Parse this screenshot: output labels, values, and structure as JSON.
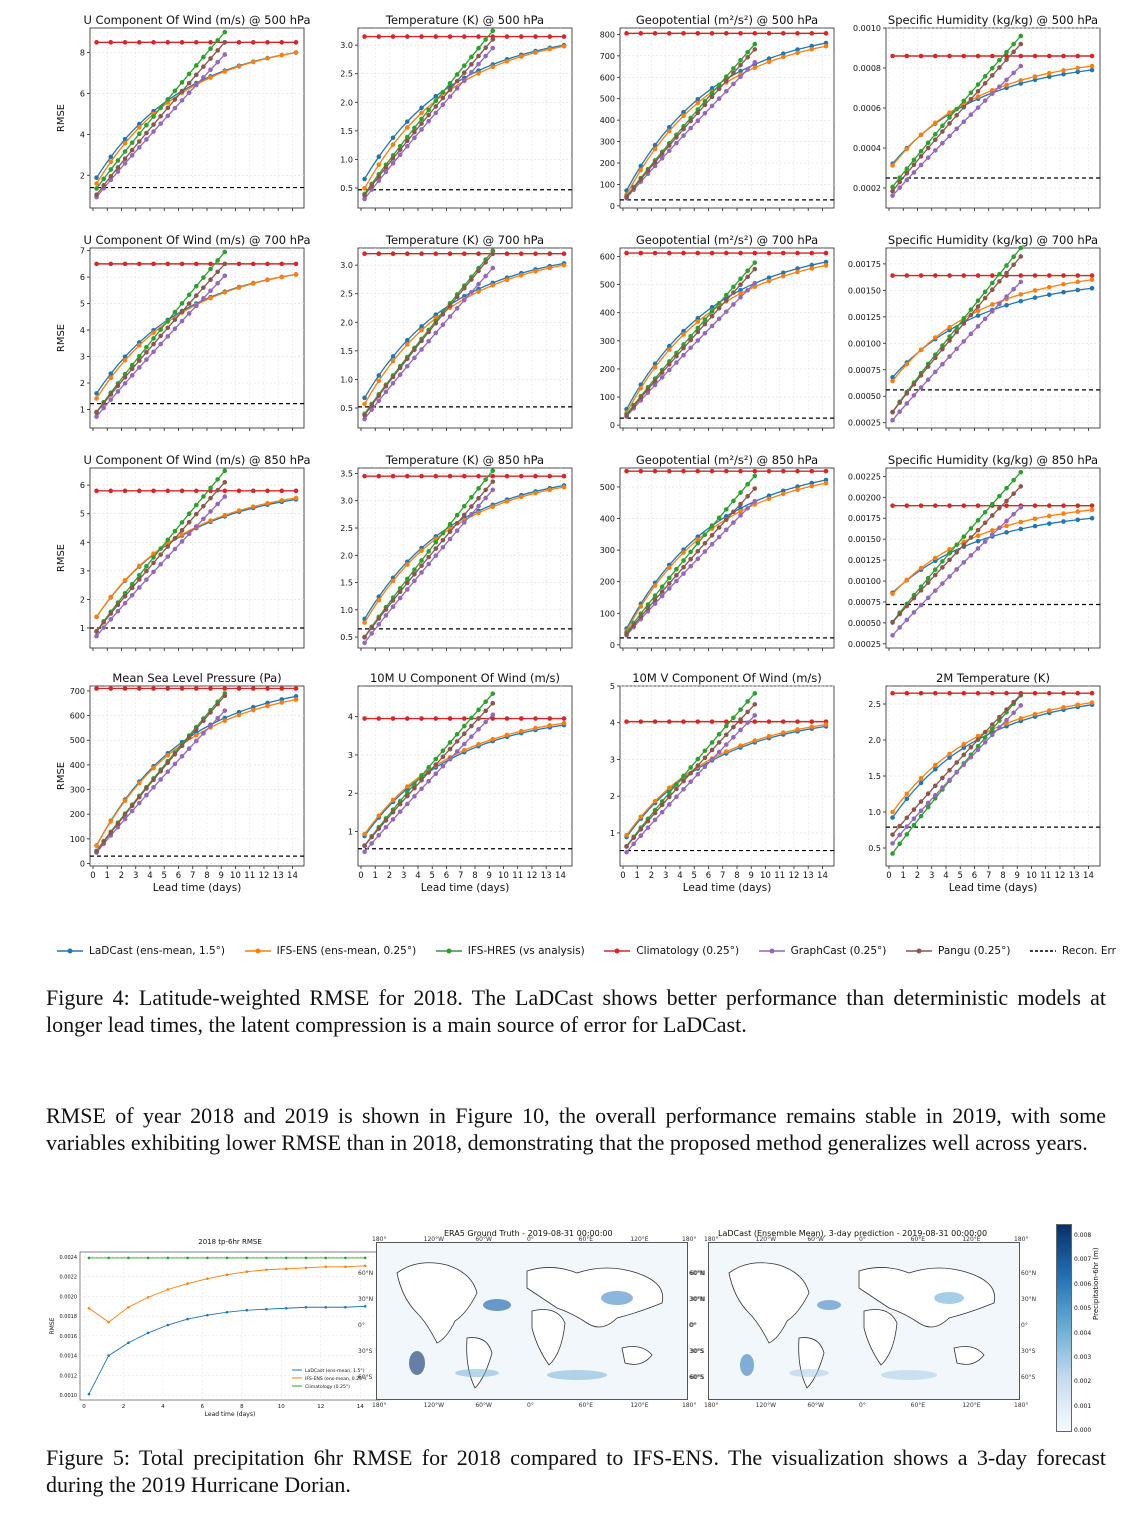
{
  "figure4": {
    "colors": {
      "LaDCast": "#1f77b4",
      "IFS-ENS": "#ff7f0e",
      "IFS-HRES": "#2ca02c",
      "Climatology": "#d62728",
      "GraphCast": "#9467bd",
      "Pangu": "#8c564b",
      "Recon": "#000000"
    },
    "ylabel": "RMSE",
    "xlabel": "Lead time (days)",
    "xticks": [
      "0",
      "1",
      "2",
      "3",
      "4",
      "5",
      "6",
      "7",
      "8",
      "9",
      "10",
      "11",
      "12",
      "13",
      "14"
    ],
    "legend": [
      {
        "key": "LaDCast",
        "label": "LaDCast (ens-mean, 1.5°)",
        "style": "line"
      },
      {
        "key": "IFS-ENS",
        "label": "IFS-ENS (ens-mean, 0.25°)",
        "style": "line"
      },
      {
        "key": "IFS-HRES",
        "label": "IFS-HRES (vs analysis)",
        "style": "line"
      },
      {
        "key": "Climatology",
        "label": "Climatology (0.25°)",
        "style": "line"
      },
      {
        "key": "GraphCast",
        "label": "GraphCast (0.25°)",
        "style": "line"
      },
      {
        "key": "Pangu",
        "label": "Pangu (0.25°)",
        "style": "line"
      },
      {
        "key": "Recon",
        "label": "Recon. Err",
        "style": "dashed"
      }
    ]
  },
  "chart_data": [
    {
      "type": "line",
      "title": "U Component Of Wind (m/s) @ 500 hPa",
      "ylim": [
        0.4,
        9.2
      ],
      "yticks": [
        "2",
        "4",
        "6",
        "8"
      ],
      "ytick_vals": [
        2,
        4,
        6,
        8
      ],
      "start": {
        "LaDCast": 1.6,
        "IFS-ENS": 1.3,
        "IFS-HRES": 1.1,
        "GraphCast": 0.7,
        "Pangu": 0.8
      },
      "end": {
        "LaDCast": 8.0,
        "IFS-ENS": 8.0,
        "IFS-HRES": 9.0,
        "GraphCast": 7.9,
        "Pangu": 8.5
      },
      "clim": 8.5,
      "recon": 1.4
    },
    {
      "type": "line",
      "title": "Temperature (K) @ 500 hPa",
      "ylim": [
        0.15,
        3.3
      ],
      "yticks": [
        "0.5",
        "1.0",
        "1.5",
        "2.0",
        "2.5",
        "3.0"
      ],
      "ytick_vals": [
        0.5,
        1.0,
        1.5,
        2.0,
        2.5,
        3.0
      ],
      "start": {
        "LaDCast": 0.55,
        "IFS-ENS": 0.38,
        "IFS-HRES": 0.3,
        "GraphCast": 0.22,
        "Pangu": 0.28
      },
      "end": {
        "LaDCast": 3.0,
        "IFS-ENS": 2.98,
        "IFS-HRES": 3.25,
        "GraphCast": 2.95,
        "Pangu": 3.1
      },
      "clim": 3.15,
      "recon": 0.47
    },
    {
      "type": "line",
      "title": "Geopotential (m²/s²) @ 500 hPa",
      "ylim": [
        -10,
        830
      ],
      "yticks": [
        "0",
        "100",
        "200",
        "300",
        "400",
        "500",
        "600",
        "700",
        "800"
      ],
      "ytick_vals": [
        0,
        100,
        200,
        300,
        400,
        500,
        600,
        700,
        800
      ],
      "start": {
        "LaDCast": 40,
        "IFS-ENS": 20,
        "IFS-HRES": 20,
        "GraphCast": 15,
        "Pangu": 18
      },
      "end": {
        "LaDCast": 760,
        "IFS-ENS": 745,
        "IFS-HRES": 755,
        "GraphCast": 670,
        "Pangu": 730
      },
      "clim": 805,
      "recon": 28
    },
    {
      "type": "line",
      "title": "Specific Humidity (kg/kg) @ 500 hPa",
      "ylim": [
        0.0001,
        0.001
      ],
      "yticks": [
        "0.0002",
        "0.0004",
        "0.0006",
        "0.0008",
        "0.0010"
      ],
      "ytick_vals": [
        0.0002,
        0.0004,
        0.0006,
        0.0008,
        0.001
      ],
      "start": {
        "LaDCast": 0.0003,
        "IFS-ENS": 0.00029,
        "IFS-HRES": 0.00018,
        "GraphCast": 0.00014,
        "Pangu": 0.00016
      },
      "end": {
        "LaDCast": 0.00079,
        "IFS-ENS": 0.00081,
        "IFS-HRES": 0.00096,
        "GraphCast": 0.00081,
        "Pangu": 0.00092
      },
      "clim": 0.00086,
      "recon": 0.00025
    },
    {
      "type": "line",
      "title": "U Component Of Wind (m/s) @ 700 hPa",
      "ylim": [
        0.3,
        7.1
      ],
      "yticks": [
        "1",
        "2",
        "3",
        "4",
        "5",
        "6",
        "7"
      ],
      "ytick_vals": [
        1,
        2,
        3,
        4,
        5,
        6,
        7
      ],
      "start": {
        "LaDCast": 1.4,
        "IFS-ENS": 1.2,
        "IFS-HRES": 0.7,
        "GraphCast": 0.55,
        "Pangu": 0.7
      },
      "end": {
        "LaDCast": 6.1,
        "IFS-ENS": 6.1,
        "IFS-HRES": 6.95,
        "GraphCast": 6.05,
        "Pangu": 6.5
      },
      "clim": 6.5,
      "recon": 1.22
    },
    {
      "type": "line",
      "title": "Temperature (K) @ 700 hPa",
      "ylim": [
        0.15,
        3.3
      ],
      "yticks": [
        "0.5",
        "1.0",
        "1.5",
        "2.0",
        "2.5",
        "3.0"
      ],
      "ytick_vals": [
        0.5,
        1.0,
        1.5,
        2.0,
        2.5,
        3.0
      ],
      "start": {
        "LaDCast": 0.57,
        "IFS-ENS": 0.46,
        "IFS-HRES": 0.3,
        "GraphCast": 0.22,
        "Pangu": 0.28
      },
      "end": {
        "LaDCast": 3.03,
        "IFS-ENS": 3.0,
        "IFS-HRES": 3.25,
        "GraphCast": 2.95,
        "Pangu": 3.2
      },
      "clim": 3.2,
      "recon": 0.52
    },
    {
      "type": "line",
      "title": "Geopotential (m²/s²) @ 700 hPa",
      "ylim": [
        -10,
        630
      ],
      "yticks": [
        "0",
        "100",
        "200",
        "300",
        "400",
        "500",
        "600"
      ],
      "ytick_vals": [
        0,
        100,
        200,
        300,
        400,
        500,
        600
      ],
      "start": {
        "LaDCast": 33,
        "IFS-ENS": 20,
        "IFS-HRES": 20,
        "GraphCast": 15,
        "Pangu": 17
      },
      "end": {
        "LaDCast": 580,
        "IFS-ENS": 568,
        "IFS-HRES": 578,
        "GraphCast": 505,
        "Pangu": 555
      },
      "clim": 612,
      "recon": 25
    },
    {
      "type": "line",
      "title": "Specific Humidity (kg/kg) @ 700 hPa",
      "ylim": [
        0.0002,
        0.0019
      ],
      "yticks": [
        "0.00025",
        "0.00050",
        "0.00075",
        "0.00100",
        "0.00125",
        "0.00150",
        "0.00175"
      ],
      "ytick_vals": [
        0.00025,
        0.0005,
        0.00075,
        0.001,
        0.00125,
        0.0015,
        0.00175
      ],
      "start": {
        "LaDCast": 0.00064,
        "IFS-ENS": 0.0006,
        "IFS-HRES": 0.0003,
        "GraphCast": 0.00023,
        "Pangu": 0.0003
      },
      "end": {
        "LaDCast": 0.00152,
        "IFS-ENS": 0.0016,
        "IFS-HRES": 0.0019,
        "GraphCast": 0.00158,
        "Pangu": 0.00182
      },
      "clim": 0.00164,
      "recon": 0.00056
    },
    {
      "type": "line",
      "title": "U Component Of Wind (m/s) @ 850 hPa",
      "ylim": [
        0.3,
        6.6
      ],
      "yticks": [
        "1",
        "2",
        "3",
        "4",
        "5",
        "6"
      ],
      "ytick_vals": [
        1,
        2,
        3,
        4,
        5,
        6
      ],
      "start": {
        "LaDCast": 1.2,
        "IFS-ENS": 1.2,
        "IFS-HRES": 0.7,
        "GraphCast": 0.55,
        "Pangu": 0.7
      },
      "end": {
        "LaDCast": 5.5,
        "IFS-ENS": 5.55,
        "IFS-HRES": 6.5,
        "GraphCast": 5.6,
        "Pangu": 6.1
      },
      "clim": 5.8,
      "recon": 1.0
    },
    {
      "type": "line",
      "title": "Temperature (K) @ 850 hPa",
      "ylim": [
        0.3,
        3.6
      ],
      "yticks": [
        "0.5",
        "1.0",
        "1.5",
        "2.0",
        "2.5",
        "3.0",
        "3.5"
      ],
      "ytick_vals": [
        0.5,
        1.0,
        1.5,
        2.0,
        2.5,
        3.0,
        3.5
      ],
      "start": {
        "LaDCast": 0.72,
        "IFS-ENS": 0.65,
        "IFS-HRES": 0.4,
        "GraphCast": 0.3,
        "Pangu": 0.4
      },
      "end": {
        "LaDCast": 3.28,
        "IFS-ENS": 3.25,
        "IFS-HRES": 3.55,
        "GraphCast": 3.2,
        "Pangu": 3.35
      },
      "clim": 3.45,
      "recon": 0.65
    },
    {
      "type": "line",
      "title": "Geopotential (m²/s²) @ 850 hPa",
      "ylim": [
        -10,
        560
      ],
      "yticks": [
        "0",
        "100",
        "200",
        "300",
        "400",
        "500"
      ],
      "ytick_vals": [
        0,
        100,
        200,
        300,
        400,
        500
      ],
      "start": {
        "LaDCast": 30,
        "IFS-ENS": 22,
        "IFS-HRES": 22,
        "GraphCast": 16,
        "Pangu": 18
      },
      "end": {
        "LaDCast": 522,
        "IFS-ENS": 512,
        "IFS-HRES": 535,
        "GraphCast": 455,
        "Pangu": 495
      },
      "clim": 550,
      "recon": 22
    },
    {
      "type": "line",
      "title": "Specific Humidity (kg/kg) @ 850 hPa",
      "ylim": [
        0.0002,
        0.00235
      ],
      "yticks": [
        "0.00025",
        "0.00050",
        "0.00075",
        "0.00100",
        "0.00125",
        "0.00150",
        "0.00175",
        "0.00200",
        "0.00225"
      ],
      "ytick_vals": [
        0.00025,
        0.0005,
        0.00075,
        0.001,
        0.00125,
        0.0015,
        0.00175,
        0.002,
        0.00225
      ],
      "start": {
        "LaDCast": 0.00082,
        "IFS-ENS": 0.0008,
        "IFS-HRES": 0.00045,
        "GraphCast": 0.0003,
        "Pangu": 0.00045
      },
      "end": {
        "LaDCast": 0.00175,
        "IFS-ENS": 0.00185,
        "IFS-HRES": 0.0023,
        "GraphCast": 0.00188,
        "Pangu": 0.00213
      },
      "clim": 0.0019,
      "recon": 0.00072
    },
    {
      "type": "line",
      "title": "Mean Sea Level Pressure (Pa)",
      "ylim": [
        -10,
        720
      ],
      "yticks": [
        "0",
        "100",
        "200",
        "300",
        "400",
        "500",
        "600",
        "700"
      ],
      "ytick_vals": [
        0,
        100,
        200,
        300,
        400,
        500,
        600,
        700
      ],
      "start": {
        "LaDCast": 45,
        "IFS-ENS": 45,
        "IFS-HRES": 30,
        "GraphCast": 25,
        "Pangu": 28
      },
      "end": {
        "LaDCast": 678,
        "IFS-ENS": 665,
        "IFS-HRES": 690,
        "GraphCast": 620,
        "Pangu": 680
      },
      "clim": 710,
      "recon": 30
    },
    {
      "type": "line",
      "title": "10M U Component Of Wind (m/s)",
      "ylim": [
        0.1,
        4.8
      ],
      "yticks": [
        "1",
        "2",
        "3",
        "4"
      ],
      "ytick_vals": [
        1,
        2,
        3,
        4
      ],
      "start": {
        "LaDCast": 0.75,
        "IFS-ENS": 0.8,
        "IFS-HRES": 0.5,
        "GraphCast": 0.35,
        "Pangu": 0.5
      },
      "end": {
        "LaDCast": 3.78,
        "IFS-ENS": 3.83,
        "IFS-HRES": 4.6,
        "GraphCast": 4.05,
        "Pangu": 4.35
      },
      "clim": 3.95,
      "recon": 0.55
    },
    {
      "type": "line",
      "title": "10M V Component Of Wind (m/s)",
      "ylim": [
        0.1,
        5.0
      ],
      "yticks": [
        "1",
        "2",
        "3",
        "4",
        "5"
      ],
      "ytick_vals": [
        1,
        2,
        3,
        4,
        5
      ],
      "start": {
        "LaDCast": 0.75,
        "IFS-ENS": 0.8,
        "IFS-HRES": 0.5,
        "GraphCast": 0.35,
        "Pangu": 0.5
      },
      "end": {
        "LaDCast": 3.9,
        "IFS-ENS": 3.95,
        "IFS-HRES": 4.8,
        "GraphCast": 4.2,
        "Pangu": 4.5
      },
      "clim": 4.03,
      "recon": 0.52
    },
    {
      "type": "line",
      "title": "2M Temperature (K)",
      "ylim": [
        0.25,
        2.75
      ],
      "yticks": [
        "0.5",
        "1.0",
        "1.5",
        "2.0",
        "2.5"
      ],
      "ytick_vals": [
        0.5,
        1.0,
        1.5,
        2.0,
        2.5
      ],
      "start": {
        "LaDCast": 0.85,
        "IFS-ENS": 0.93,
        "IFS-HRES": 0.35,
        "GraphCast": 0.5,
        "Pangu": 0.62
      },
      "end": {
        "LaDCast": 2.49,
        "IFS-ENS": 2.52,
        "IFS-HRES": 2.62,
        "GraphCast": 2.48,
        "Pangu": 2.63
      },
      "clim": 2.65,
      "recon": 0.79
    },
    {
      "type": "line",
      "title": "2018 tp-6hr RMSE",
      "ylabel": "RMSE",
      "xlabel": "Lead time (days)",
      "ylim": [
        0.00095,
        0.00245
      ],
      "yticks": [
        "0.0010",
        "0.0012",
        "0.0014",
        "0.0016",
        "0.0018",
        "0.0020",
        "0.0022",
        "0.0024"
      ],
      "ytick_vals": [
        0.001,
        0.0012,
        0.0014,
        0.0016,
        0.0018,
        0.002,
        0.0022,
        0.0024
      ],
      "xticks": [
        "0",
        "2",
        "4",
        "6",
        "8",
        "10",
        "12",
        "14"
      ],
      "series": [
        {
          "name": "LaDCast (ens-mean, 1.5°)",
          "color": "#1f77b4",
          "x": [
            0.25,
            1.25,
            2.25,
            3.25,
            4.25,
            5.25,
            6.25,
            7.25,
            8.25,
            9.25,
            10.25,
            11.25,
            12.25,
            13.25,
            14.25
          ],
          "values": [
            0.00101,
            0.0014,
            0.00153,
            0.00163,
            0.00171,
            0.00177,
            0.00181,
            0.00184,
            0.00186,
            0.00187,
            0.00188,
            0.00189,
            0.00189,
            0.00189,
            0.0019
          ]
        },
        {
          "name": "IFS-ENS (ens-mean, 0.25°)",
          "color": "#ff7f0e",
          "x": [
            0.25,
            1.25,
            2.25,
            3.25,
            4.25,
            5.25,
            6.25,
            7.25,
            8.25,
            9.25,
            10.25,
            11.25,
            12.25,
            13.25,
            14.25
          ],
          "values": [
            0.00188,
            0.00174,
            0.00189,
            0.00199,
            0.00207,
            0.00213,
            0.00218,
            0.00222,
            0.00225,
            0.00227,
            0.00228,
            0.00229,
            0.0023,
            0.0023,
            0.00231
          ]
        },
        {
          "name": "Climatology (0.25°)",
          "color": "#2ca02c",
          "x": [
            0.25,
            1.25,
            2.25,
            3.25,
            4.25,
            5.25,
            6.25,
            7.25,
            8.25,
            9.25,
            10.25,
            11.25,
            12.25,
            13.25,
            14.25
          ],
          "values": [
            0.00239,
            0.00239,
            0.00239,
            0.00239,
            0.00239,
            0.00239,
            0.00239,
            0.00239,
            0.00239,
            0.00239,
            0.00239,
            0.00239,
            0.00239,
            0.00239,
            0.00239
          ]
        }
      ]
    }
  ],
  "maps": {
    "left_title": "ERA5 Ground Truth - 2019-08-31 00:00:00",
    "right_title": "LaDCast (Ensemble Mean), 3-day prediction - 2019-08-31 00:00:00",
    "lon_labels": [
      "180°",
      "120°W",
      "60°W",
      "0°",
      "60°E",
      "120°E",
      "180°"
    ],
    "lat_labels": [
      "60°N",
      "30°N",
      "0°",
      "30°S",
      "60°S"
    ],
    "colorbar_label": "Precipitation-6hr (m)",
    "colorbar_ticks": [
      "0.008",
      "0.007",
      "0.006",
      "0.005",
      "0.004",
      "0.003",
      "0.002",
      "0.001",
      "0.000"
    ]
  },
  "text": {
    "caption4": "Figure 4: Latitude-weighted RMSE for 2018. The LaDCast shows better performance than deterministic models at longer lead times, the latent compression is a main source of error for LaDCast.",
    "paragraph": "RMSE of year 2018 and 2019 is shown in Figure 10, the overall performance remains stable in 2019, with some variables exhibiting lower RMSE than in 2018, demonstrating that the proposed method generalizes well across years.",
    "caption5": "Figure 5: Total precipitation 6hr RMSE for 2018 compared to IFS-ENS. The visualization shows a 3-day forecast during the 2019 Hurricane Dorian."
  }
}
